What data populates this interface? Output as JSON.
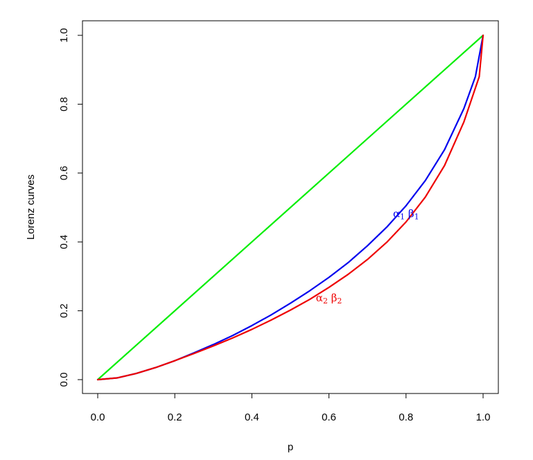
{
  "chart_data": {
    "type": "line",
    "title": "",
    "xlabel": "p",
    "ylabel": "Lorenz curves",
    "xlim": [
      0,
      1
    ],
    "ylim": [
      0,
      1
    ],
    "xticks": [
      "0.0",
      "0.2",
      "0.4",
      "0.6",
      "0.8",
      "1.0"
    ],
    "yticks": [
      "0.0",
      "0.2",
      "0.4",
      "0.6",
      "0.8",
      "1.0"
    ],
    "grid": false,
    "legend": "none",
    "series": [
      {
        "color": "#00ee00",
        "x": [
          0,
          1
        ],
        "y": [
          0,
          1
        ]
      },
      {
        "color": "#0000ee",
        "x": [
          0,
          0.05,
          0.1,
          0.15,
          0.2,
          0.25,
          0.3,
          0.35,
          0.4,
          0.45,
          0.5,
          0.55,
          0.6,
          0.65,
          0.7,
          0.75,
          0.8,
          0.85,
          0.9,
          0.95,
          0.98,
          1.0
        ],
        "y": [
          0,
          0.005,
          0.018,
          0.035,
          0.055,
          0.078,
          0.102,
          0.128,
          0.157,
          0.188,
          0.222,
          0.258,
          0.297,
          0.34,
          0.389,
          0.443,
          0.505,
          0.578,
          0.668,
          0.787,
          0.88,
          1.0
        ]
      },
      {
        "color": "#ee0000",
        "x": [
          0,
          0.05,
          0.1,
          0.15,
          0.2,
          0.25,
          0.3,
          0.35,
          0.4,
          0.45,
          0.5,
          0.55,
          0.6,
          0.65,
          0.7,
          0.75,
          0.8,
          0.85,
          0.9,
          0.95,
          0.99,
          1.0
        ],
        "y": [
          0,
          0.005,
          0.018,
          0.035,
          0.055,
          0.076,
          0.098,
          0.121,
          0.146,
          0.173,
          0.202,
          0.233,
          0.268,
          0.306,
          0.349,
          0.399,
          0.458,
          0.53,
          0.622,
          0.748,
          0.88,
          1.0
        ]
      }
    ],
    "annotations": [
      {
        "alpha": "α",
        "alpha_sub": "1",
        "beta": "β",
        "beta_sub": "1",
        "color": "#0000ee",
        "x": 0.8,
        "y": 0.48
      },
      {
        "alpha": "α",
        "alpha_sub": "2",
        "beta": "β",
        "beta_sub": "2",
        "color": "#ee0000",
        "x": 0.6,
        "y": 0.235
      }
    ]
  }
}
